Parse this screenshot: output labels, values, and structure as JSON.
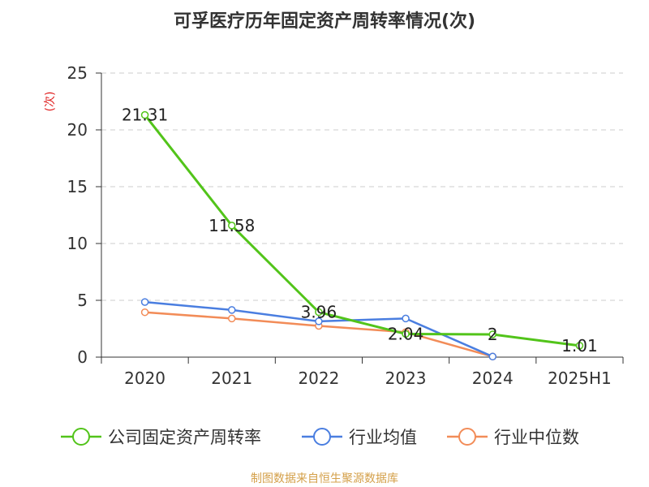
{
  "chart_data": {
    "type": "line",
    "title": "可孚医疗历年固定资产周转率情况(次)",
    "ylabel": "(次)",
    "xlabel": "",
    "categories": [
      "2020",
      "2021",
      "2022",
      "2023",
      "2024",
      "2025H1"
    ],
    "ylim": [
      0,
      25
    ],
    "yticks": [
      "0",
      "5",
      "10",
      "15",
      "20",
      "25"
    ],
    "grid": true,
    "legend_position": "bottom",
    "series": [
      {
        "name": "公司固定资产周转率",
        "values": [
          21.31,
          11.58,
          3.96,
          2.04,
          2,
          1.01
        ],
        "labels": [
          "21.31",
          "11.58",
          "3.96",
          "2.04",
          "2",
          "1.01"
        ],
        "color": "#52c41a"
      },
      {
        "name": "行业均值",
        "values": [
          4.85,
          4.15,
          3.15,
          3.4,
          0.05,
          null
        ],
        "color": "#4a7ee0"
      },
      {
        "name": "行业中位数",
        "values": [
          3.95,
          3.4,
          2.75,
          2.2,
          0.05,
          null
        ],
        "color": "#f28c58"
      }
    ],
    "source": "制图数据来自恒生聚源数据库",
    "title_color": "#333333",
    "ylabel_color": "#e02020",
    "source_color": "#d4a04a"
  }
}
